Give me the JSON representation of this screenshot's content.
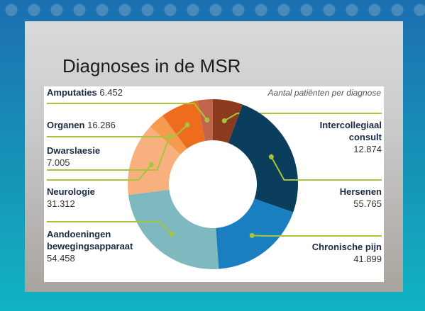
{
  "chart_data": {
    "type": "donut",
    "title": "Diagnoses in de MSR",
    "subtitle": "Aantal patiënten per diagnose",
    "categories": [
      "Intercollegiaal consult",
      "Hersenen",
      "Chronische pijn",
      "Aandoeningen bewegingsapparaat",
      "Neurologie",
      "Dwarslaesie",
      "Organen",
      "Amputaties"
    ],
    "values": [
      12874,
      55765,
      41899,
      54458,
      31312,
      7005,
      16286,
      6452
    ],
    "value_labels": [
      "12.874",
      "55.765",
      "41.899",
      "54.458",
      "31.312",
      "7.005",
      "16.286",
      "6.452"
    ],
    "colors": [
      "#8b3a1e",
      "#0b3d5c",
      "#1a7fc1",
      "#7fb9c0",
      "#f8b07e",
      "#f59a4e",
      "#ee6c1e",
      "#c0644c"
    ]
  }
}
